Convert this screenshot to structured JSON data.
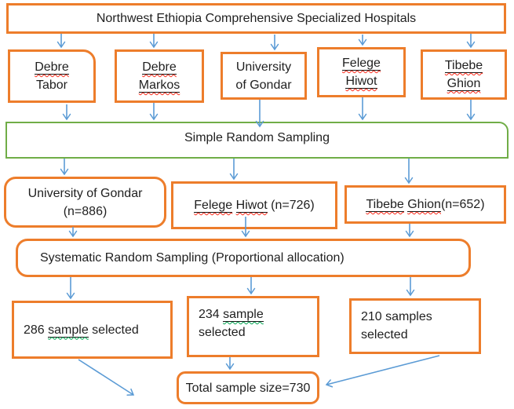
{
  "figure": "Sampling procedure flowchart",
  "colors": {
    "box_border_orange": "#ED7D2B",
    "box_border_green": "#70AD47",
    "arrow_blue": "#5B9BD5",
    "text": "#1f1f1f",
    "spellcheck_squiggle_red": "#ff2a1a",
    "grammar_squiggle_green": "#00a550"
  },
  "nodes": {
    "top": {
      "lines": [
        [
          {
            "t": "Northwest Ethiopia Comprehensive Specialized Hospitals"
          }
        ]
      ]
    },
    "debre_tabor": {
      "lines": [
        [
          {
            "t": "Debre",
            "u": true,
            "sq": "red"
          }
        ],
        [
          {
            "t": "Tabor"
          }
        ]
      ]
    },
    "debre_markos": {
      "lines": [
        [
          {
            "t": "Debre",
            "u": true,
            "sq": "red"
          }
        ],
        [
          {
            "t": "Markos",
            "u": true,
            "sq": "red"
          }
        ]
      ]
    },
    "univ_gondar": {
      "lines": [
        [
          {
            "t": "University"
          }
        ],
        [
          {
            "t": "of Gondar"
          }
        ]
      ]
    },
    "felege_hiwot": {
      "lines": [
        [
          {
            "t": "Felege",
            "u": true,
            "sq": "red"
          }
        ],
        [
          {
            "t": "Hiwot",
            "u": true,
            "sq": "red"
          }
        ]
      ]
    },
    "tibebe_ghion": {
      "lines": [
        [
          {
            "t": "Tibebe",
            "u": true,
            "sq": "red"
          }
        ],
        [
          {
            "t": "Ghion",
            "u": true,
            "sq": "red"
          }
        ]
      ]
    },
    "simple_random": {
      "lines": [
        [
          {
            "t": "Simple Random Sampling"
          }
        ]
      ]
    },
    "uog_n886": {
      "lines": [
        [
          {
            "t": "University of Gondar"
          }
        ],
        [
          {
            "t": "(n=886)"
          }
        ]
      ]
    },
    "felege_n726": {
      "lines": [
        [
          {
            "t": "Felege",
            "u": true,
            "sq": "red"
          },
          {
            "t": " "
          },
          {
            "t": "Hiwot",
            "u": true,
            "sq": "red"
          },
          {
            "t": " (n=726)"
          }
        ]
      ]
    },
    "tibebe_n652": {
      "lines": [
        [
          {
            "t": "Tibebe",
            "u": true,
            "sq": "red"
          },
          {
            "t": " "
          },
          {
            "t": "Ghion",
            "u": true,
            "sq": "red"
          },
          {
            "t": "(n=652)"
          }
        ]
      ]
    },
    "systematic": {
      "lines": [
        [
          {
            "t": "Systematic Random Sampling (Proportional allocation)"
          }
        ]
      ]
    },
    "s286": {
      "lines": [
        [
          {
            "t": "286 "
          },
          {
            "t": "sample",
            "u": true,
            "sq": "green"
          },
          {
            "t": " selected"
          }
        ]
      ]
    },
    "s234": {
      "lines": [
        [
          {
            "t": "234 "
          },
          {
            "t": "sample",
            "u": true,
            "sq": "green"
          }
        ],
        [
          {
            "t": "selected"
          }
        ]
      ]
    },
    "s210": {
      "lines": [
        [
          {
            "t": "210 samples"
          }
        ],
        [
          {
            "t": "selected"
          }
        ]
      ]
    },
    "total": {
      "lines": [
        [
          {
            "t": "Total sample size=730"
          }
        ]
      ]
    }
  },
  "edges": [
    {
      "from": "top",
      "to": "debre_tabor"
    },
    {
      "from": "top",
      "to": "debre_markos"
    },
    {
      "from": "top",
      "to": "univ_gondar"
    },
    {
      "from": "top",
      "to": "felege_hiwot"
    },
    {
      "from": "top",
      "to": "tibebe_ghion"
    },
    {
      "from": "debre_tabor",
      "to": "simple_random"
    },
    {
      "from": "debre_markos",
      "to": "simple_random"
    },
    {
      "from": "univ_gondar",
      "to": "simple_random"
    },
    {
      "from": "felege_hiwot",
      "to": "simple_random"
    },
    {
      "from": "tibebe_ghion",
      "to": "simple_random"
    },
    {
      "from": "simple_random",
      "to": "uog_n886"
    },
    {
      "from": "simple_random",
      "to": "felege_n726"
    },
    {
      "from": "simple_random",
      "to": "tibebe_n652"
    },
    {
      "from": "uog_n886",
      "to": "systematic"
    },
    {
      "from": "felege_n726",
      "to": "systematic"
    },
    {
      "from": "tibebe_n652",
      "to": "systematic"
    },
    {
      "from": "systematic",
      "to": "s286"
    },
    {
      "from": "systematic",
      "to": "s234"
    },
    {
      "from": "systematic",
      "to": "s210"
    },
    {
      "from": "s286",
      "to": "total"
    },
    {
      "from": "s234",
      "to": "total"
    },
    {
      "from": "s210",
      "to": "total"
    }
  ]
}
